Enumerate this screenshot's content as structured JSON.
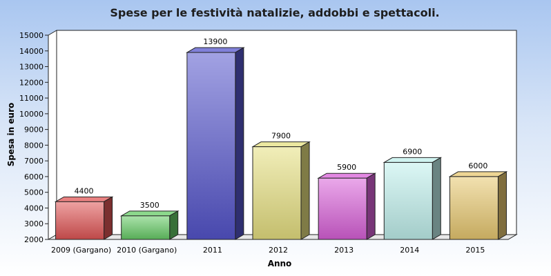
{
  "chart_data": {
    "type": "bar",
    "title": "Spese per le festività natalizie, addobbi e spettacoli.",
    "xlabel": "Anno",
    "ylabel": "Spesa in euro",
    "categories": [
      "2009 (Gargano)",
      "2010 (Gargano)",
      "2011",
      "2012",
      "2013",
      "2014",
      "2015"
    ],
    "values": [
      4400,
      3500,
      13900,
      7900,
      5900,
      6900,
      6000
    ],
    "ylim": [
      2000,
      15000
    ],
    "yticks": [
      2000,
      3000,
      4000,
      5000,
      6000,
      7000,
      8000,
      9000,
      10000,
      11000,
      12000,
      13000,
      14000,
      15000
    ],
    "colors": [
      "#e05555",
      "#66cc66",
      "#5555cc",
      "#e6e080",
      "#d860d8",
      "#c0f0ec",
      "#e8c870"
    ],
    "legend": "none",
    "grid": false
  }
}
